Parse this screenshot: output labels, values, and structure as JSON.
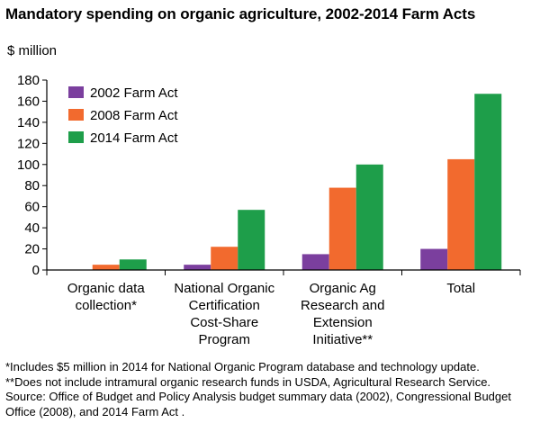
{
  "chart_data": {
    "type": "bar",
    "title": "Mandatory spending on organic agriculture, 2002-2014 Farm Acts",
    "ylabel": "$ million",
    "xlabel": "",
    "ylim": [
      0,
      180
    ],
    "yticks": [
      0,
      20,
      40,
      60,
      80,
      100,
      120,
      140,
      160,
      180
    ],
    "grid": false,
    "legend_position": "top-left",
    "categories": [
      [
        "Organic data",
        "collection*"
      ],
      [
        "National Organic",
        "Certification",
        "Cost-Share",
        "Program"
      ],
      [
        "Organic Ag",
        "Research and",
        "Extension",
        "Initiative**"
      ],
      [
        "Total"
      ]
    ],
    "series": [
      {
        "name": "2002 Farm Act",
        "color": "#7b3f9e",
        "values": [
          0,
          5,
          15,
          20
        ]
      },
      {
        "name": "2008 Farm Act",
        "color": "#f26a2e",
        "values": [
          5,
          22,
          78,
          105
        ]
      },
      {
        "name": "2014 Farm Act",
        "color": "#1e9e4a",
        "values": [
          10,
          57,
          100,
          167
        ]
      }
    ]
  },
  "notes": [
    "*Includes $5 million in 2014 for National Organic Program database and technology update.",
    "**Does not include intramural organic research funds in USDA, Agricultural Research Service.",
    "Source:  Office of Budget and Policy Analysis budget summary data (2002), Congressional Budget Office (2008), and 2014 Farm Act ."
  ]
}
